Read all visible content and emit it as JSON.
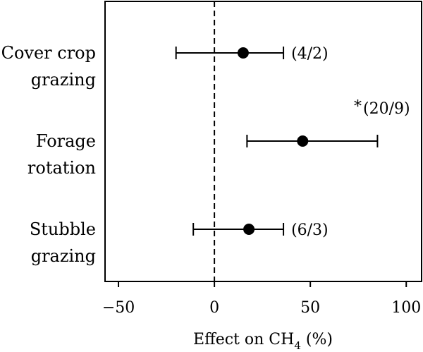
{
  "chart_data": {
    "type": "forest",
    "xlabel": "Effect on CH",
    "xlabel_sub": "4",
    "xlabel_unit": " (%)",
    "xlim": [
      -57,
      108
    ],
    "xticks": [
      {
        "value": -50,
        "label": "−50"
      },
      {
        "value": 0,
        "label": "0"
      },
      {
        "value": 50,
        "label": "50"
      },
      {
        "value": 100,
        "label": "100"
      }
    ],
    "reference_line": {
      "value": 0,
      "style": "dashed"
    },
    "rows": [
      {
        "label_lines": [
          "Cover crop",
          "grazing"
        ],
        "estimate": 15,
        "ci_low": -20,
        "ci_high": 36,
        "annotation": "(4/2)",
        "significance": ""
      },
      {
        "label_lines": [
          "Forage",
          "rotation"
        ],
        "estimate": 46,
        "ci_low": 17,
        "ci_high": 85,
        "annotation": "(20/9)",
        "significance": "*"
      },
      {
        "label_lines": [
          "Stubble",
          "grazing"
        ],
        "estimate": 18,
        "ci_low": -11,
        "ci_high": 36,
        "annotation": "(6/3)",
        "significance": ""
      }
    ]
  }
}
